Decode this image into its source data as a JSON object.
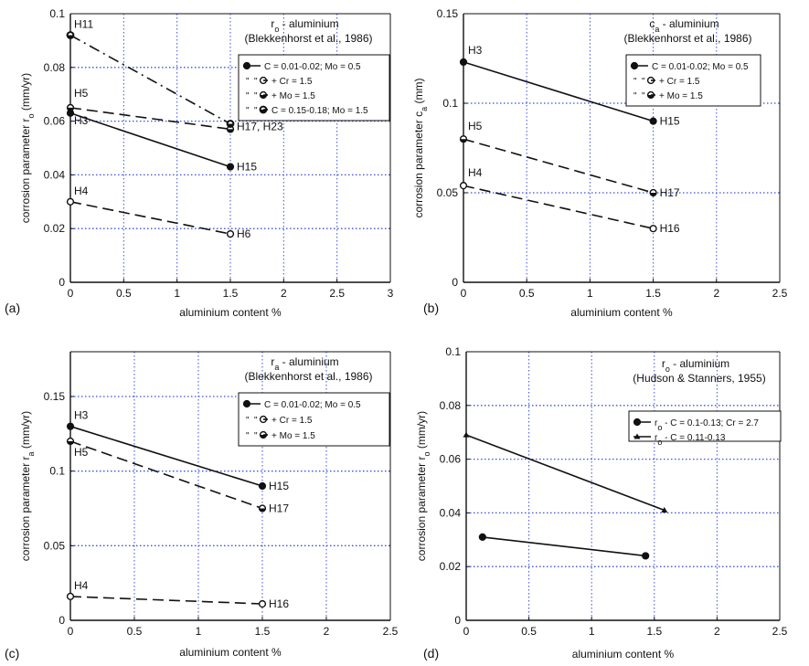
{
  "figure": {
    "panel_labels": [
      "(a)",
      "(b)",
      "(c)",
      "(d)"
    ]
  },
  "chart_data": [
    {
      "type": "line",
      "panel": "(a)",
      "title": "r_o - aluminium",
      "title_main": "r",
      "title_sub": "o",
      "title_rest": " - aluminium",
      "subtitle": "(Blekkenhorst et al., 1986)",
      "xlabel": "aluminium content %",
      "ylabel": "corrosion parameter r",
      "ylabel_sub": "o",
      "ylabel_unit": " (mm/yr)",
      "xlim": [
        0,
        3
      ],
      "ylim": [
        0,
        0.1
      ],
      "xticks": [
        0,
        0.5,
        1,
        1.5,
        2,
        2.5,
        3
      ],
      "xtick_labels": [
        "0",
        "0.5",
        "1",
        "1.5",
        "2",
        "2.5",
        "3"
      ],
      "yticks": [
        0,
        0.02,
        0.04,
        0.06,
        0.08,
        0.1
      ],
      "ytick_labels": [
        "0",
        "0.02",
        "0.04",
        "0.06",
        "0.08",
        "0.1"
      ],
      "grid": true,
      "legend_position": "top-right",
      "series": [
        {
          "name": "C = 0.01-0.02; Mo = 0.5",
          "style": "solid",
          "marker": "filled",
          "points": [
            {
              "x": 0,
              "y": 0.063
            },
            {
              "x": 1.5,
              "y": 0.043
            }
          ]
        },
        {
          "name": "+ Cr = 1.5",
          "style": "dash",
          "marker": "open",
          "points": [
            {
              "x": 0,
              "y": 0.03
            },
            {
              "x": 1.5,
              "y": 0.018
            }
          ]
        },
        {
          "name": "+ Mo = 1.5",
          "style": "dash",
          "marker": "half",
          "points": [
            {
              "x": 0,
              "y": 0.065
            },
            {
              "x": 1.5,
              "y": 0.057
            }
          ]
        },
        {
          "name": "C = 0.15-0.18; Mo = 1.5",
          "style": "dashdot",
          "marker": "halfbold",
          "points": [
            {
              "x": 0,
              "y": 0.092
            },
            {
              "x": 1.5,
              "y": 0.059
            }
          ]
        }
      ],
      "legend_rows": [
        {
          "prefix": "",
          "label": "C = 0.01-0.02; Mo = 0.5"
        },
        {
          "prefix": "\"",
          "label": "+ Cr = 1.5"
        },
        {
          "prefix": "\"",
          "label": "+ Mo = 1.5"
        },
        {
          "prefix": "\"",
          "label": "C = 0.15-0.18; Mo = 1.5"
        }
      ],
      "annotations": [
        {
          "text": "H11",
          "x": 0,
          "y": 0.092
        },
        {
          "text": "H5",
          "x": 0,
          "y": 0.065
        },
        {
          "text": "H3",
          "x": 0,
          "y": 0.063
        },
        {
          "text": "H4",
          "x": 0,
          "y": 0.03
        },
        {
          "text": "H17, H23",
          "x": 1.5,
          "y": 0.058
        },
        {
          "text": "H15",
          "x": 1.5,
          "y": 0.043
        },
        {
          "text": "H6",
          "x": 1.5,
          "y": 0.018
        }
      ]
    },
    {
      "type": "line",
      "panel": "(b)",
      "title": "c_a - aluminium",
      "title_main": "c",
      "title_sub": "a",
      "title_rest": " - aluminium",
      "subtitle": "(Blekkenhorst et al., 1986)",
      "xlabel": "aluminium content  %",
      "ylabel": "corrosion parameter c",
      "ylabel_sub": "a",
      "ylabel_unit": " (mm)",
      "xlim": [
        0,
        2.5
      ],
      "ylim": [
        0,
        0.15
      ],
      "xticks": [
        0,
        0.5,
        1,
        1.5,
        2,
        2.5
      ],
      "xtick_labels": [
        "0",
        "0.5",
        "1",
        "1.5",
        "2",
        "2.5"
      ],
      "yticks": [
        0,
        0.05,
        0.1,
        0.15
      ],
      "ytick_labels": [
        "0",
        "0.05",
        "0.1",
        "0.15"
      ],
      "grid": true,
      "legend_position": "top-right",
      "series": [
        {
          "name": "C = 0.01-0.02; Mo = 0.5",
          "style": "solid",
          "marker": "filled",
          "points": [
            {
              "x": 0,
              "y": 0.123
            },
            {
              "x": 1.5,
              "y": 0.09
            }
          ]
        },
        {
          "name": "+ Cr = 1.5",
          "style": "dash",
          "marker": "open",
          "points": [
            {
              "x": 0,
              "y": 0.054
            },
            {
              "x": 1.5,
              "y": 0.03
            }
          ]
        },
        {
          "name": "+ Mo = 1.5",
          "style": "dash",
          "marker": "half",
          "points": [
            {
              "x": 0,
              "y": 0.08
            },
            {
              "x": 1.5,
              "y": 0.05
            }
          ]
        }
      ],
      "legend_rows": [
        {
          "prefix": "",
          "label": "C = 0.01-0.02; Mo = 0.5"
        },
        {
          "prefix": "\"",
          "label": "+ Cr = 1.5"
        },
        {
          "prefix": "\"",
          "label": "+ Mo = 1.5"
        }
      ],
      "annotations": [
        {
          "text": "H3",
          "x": 0,
          "y": 0.123
        },
        {
          "text": "H5",
          "x": 0,
          "y": 0.08
        },
        {
          "text": "H4",
          "x": 0,
          "y": 0.054
        },
        {
          "text": "H15",
          "x": 1.5,
          "y": 0.09
        },
        {
          "text": "H17",
          "x": 1.5,
          "y": 0.05
        },
        {
          "text": "H16",
          "x": 1.5,
          "y": 0.03
        }
      ]
    },
    {
      "type": "line",
      "panel": "(c)",
      "title": "r_a - aluminium",
      "title_main": "r",
      "title_sub": "a",
      "title_rest": " - aluminium",
      "subtitle": "(Blekkenhorst et al., 1986)",
      "xlabel": "aluminium content %",
      "ylabel": "corrosion parameter r",
      "ylabel_sub": "a",
      "ylabel_unit": " (mm/yr)",
      "xlim": [
        0,
        2.5
      ],
      "ylim": [
        0,
        0.18
      ],
      "xticks": [
        0,
        0.5,
        1,
        1.5,
        2,
        2.5
      ],
      "xtick_labels": [
        "0",
        "0.5",
        "1",
        "1.5",
        "2",
        "2.5"
      ],
      "yticks": [
        0,
        0.05,
        0.1,
        0.15
      ],
      "ytick_labels": [
        "0",
        "0.05",
        "0.1",
        "0.15"
      ],
      "grid": true,
      "legend_position": "top-right",
      "series": [
        {
          "name": "C = 0.01-0.02; Mo = 0.5",
          "style": "solid",
          "marker": "filled",
          "points": [
            {
              "x": 0,
              "y": 0.13
            },
            {
              "x": 1.5,
              "y": 0.09
            }
          ]
        },
        {
          "name": "+ Cr = 1.5",
          "style": "dash",
          "marker": "open",
          "points": [
            {
              "x": 0,
              "y": 0.016
            },
            {
              "x": 1.5,
              "y": 0.011
            }
          ]
        },
        {
          "name": "+ Mo = 1.5",
          "style": "dash",
          "marker": "half",
          "points": [
            {
              "x": 0,
              "y": 0.12
            },
            {
              "x": 1.5,
              "y": 0.075
            }
          ]
        }
      ],
      "legend_rows": [
        {
          "prefix": "",
          "label": "C = 0.01-0.02; Mo = 0.5"
        },
        {
          "prefix": "\"",
          "label": "+ Cr = 1.5"
        },
        {
          "prefix": "\"",
          "label": "+ Mo = 1.5"
        }
      ],
      "annotations": [
        {
          "text": "H3",
          "x": 0,
          "y": 0.13
        },
        {
          "text": "H5",
          "x": 0,
          "y": 0.12
        },
        {
          "text": "H4",
          "x": 0,
          "y": 0.016
        },
        {
          "text": "H15",
          "x": 1.5,
          "y": 0.09
        },
        {
          "text": "H17",
          "x": 1.5,
          "y": 0.075
        },
        {
          "text": "H16",
          "x": 1.5,
          "y": 0.011
        }
      ]
    },
    {
      "type": "line",
      "panel": "(d)",
      "title": "r_o - aluminium",
      "title_main": "r",
      "title_sub": "o",
      "title_rest": " - aluminium",
      "subtitle": "(Hudson & Stanners, 1955)",
      "xlabel": "aluminium content  %",
      "ylabel": "corrosion parameter r",
      "ylabel_sub": "o",
      "ylabel_unit": " (mm/yr)",
      "xlim": [
        0,
        2.5
      ],
      "ylim": [
        0,
        0.1
      ],
      "xticks": [
        0,
        0.5,
        1,
        1.5,
        2,
        2.5
      ],
      "xtick_labels": [
        "0",
        "0.5",
        "1",
        "1.5",
        "2",
        "2.5"
      ],
      "yticks": [
        0,
        0.02,
        0.04,
        0.06,
        0.08,
        0.1
      ],
      "ytick_labels": [
        "0",
        "0.02",
        "0.04",
        "0.06",
        "0.08",
        "0.1"
      ],
      "grid": true,
      "legend_position": "top-right",
      "series": [
        {
          "name": "r_o - C = 0.1-0.13; Cr = 2.7",
          "style": "solid",
          "marker": "filled",
          "points": [
            {
              "x": 0.13,
              "y": 0.031
            },
            {
              "x": 1.43,
              "y": 0.024
            }
          ]
        },
        {
          "name": "r_o - C = 0.11-0.13",
          "style": "solid",
          "marker": "triangle",
          "points": [
            {
              "x": 0,
              "y": 0.069
            },
            {
              "x": 1.58,
              "y": 0.041
            }
          ]
        }
      ],
      "legend_rows": [
        {
          "prefix": "r",
          "sub": "o",
          "label": " - C = 0.1-0.13; Cr = 2.7"
        },
        {
          "prefix": "r",
          "sub": "o",
          "label": " - C = 0.11-0.13"
        }
      ],
      "annotations": []
    }
  ]
}
